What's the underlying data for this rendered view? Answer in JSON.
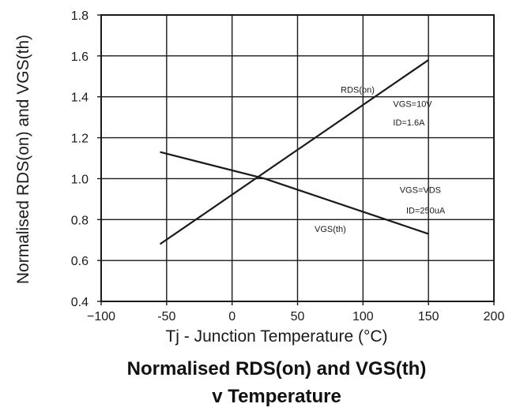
{
  "chart_data": {
    "type": "line",
    "title_lines": [
      "Normalised RDS(on) and VGS(th)",
      "v Temperature"
    ],
    "xlabel": "Tj - Junction Temperature (°C)",
    "ylabel": "Normalised RDS(on) and VGS(th)",
    "xlim": [
      -100,
      200
    ],
    "ylim": [
      0.4,
      1.8
    ],
    "xticks": [
      -100,
      -50,
      0,
      50,
      100,
      150,
      200
    ],
    "xtick_labels": [
      "−100",
      "-50",
      "0",
      "50",
      "100",
      "150",
      "200"
    ],
    "yticks": [
      0.4,
      0.6,
      0.8,
      1.0,
      1.2,
      1.4,
      1.6,
      1.8
    ],
    "ytick_labels": [
      "0.4",
      "0.6",
      "0.8",
      "1.0",
      "1.2",
      "1.4",
      "1.6",
      "1.8"
    ],
    "grid": true,
    "series": [
      {
        "name": "RDS(on)",
        "x": [
          -55,
          150
        ],
        "y": [
          0.68,
          1.58
        ]
      },
      {
        "name": "VGS(th)",
        "x": [
          -55,
          25,
          150
        ],
        "y": [
          1.13,
          1.0,
          0.73
        ]
      }
    ],
    "annotations": [
      {
        "text": "RDS(on)",
        "x": 83,
        "y": 1.42
      },
      {
        "text": "VGS=10V",
        "x": 123,
        "y": 1.35
      },
      {
        "text": "ID=1.6A",
        "x": 123,
        "y": 1.26
      },
      {
        "text": "VGS=VDS",
        "x": 128,
        "y": 0.93
      },
      {
        "text": "ID=250uA",
        "x": 133,
        "y": 0.83
      },
      {
        "text": "VGS(th)",
        "x": 63,
        "y": 0.74
      }
    ]
  }
}
